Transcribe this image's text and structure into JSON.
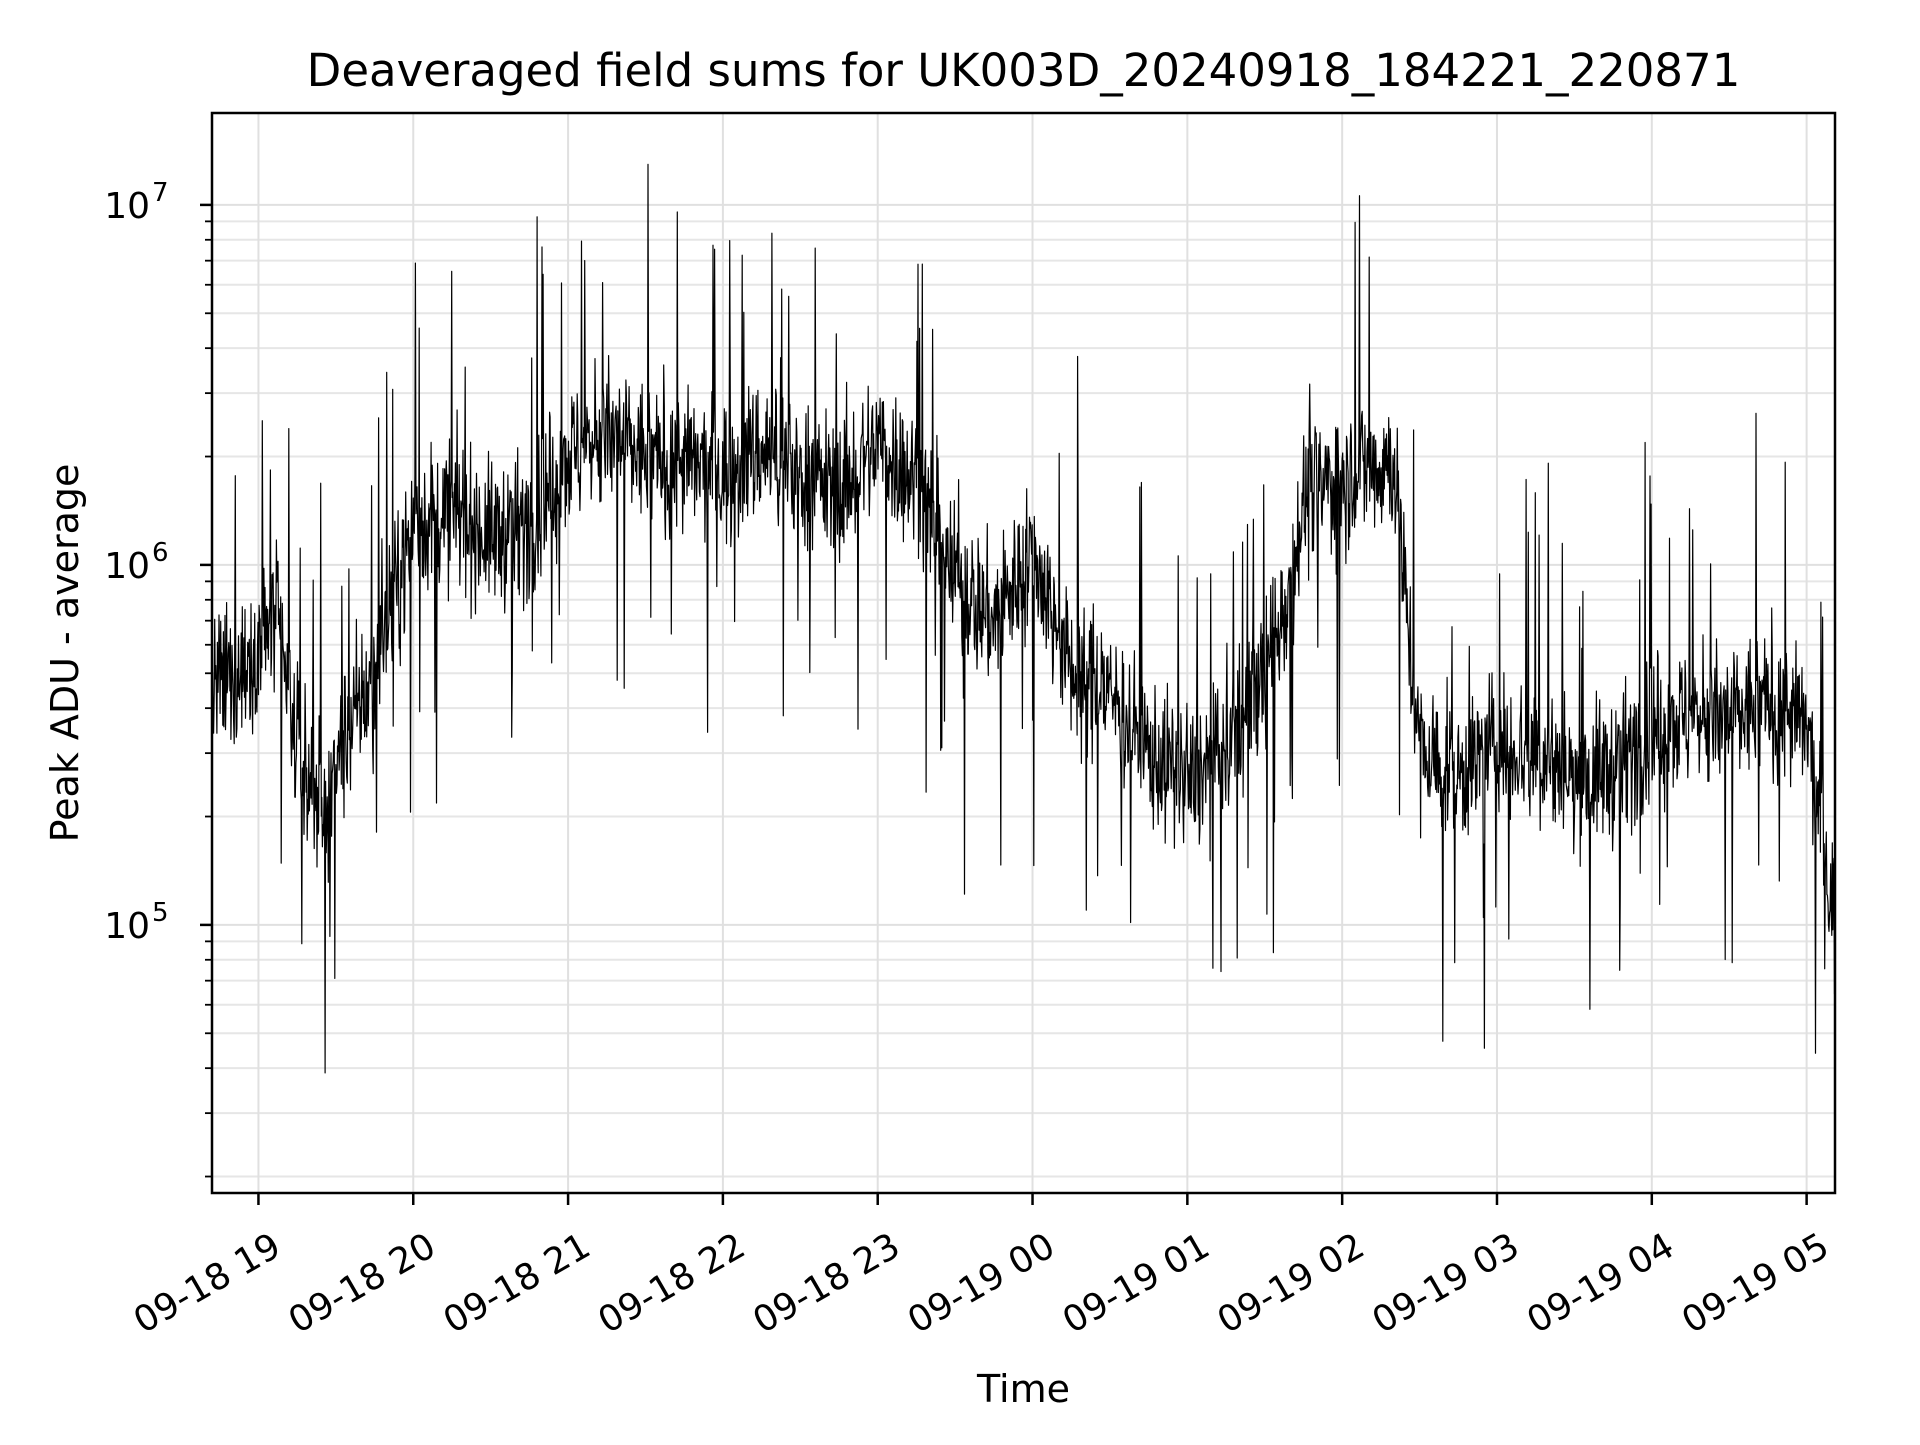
{
  "chart_data": {
    "type": "line",
    "title": "Deaveraged field sums for UK003D_20240918_184221_220871",
    "xlabel": "Time",
    "ylabel": "Peak ADU - average",
    "yscale": "log",
    "ylim": [
      18000,
      18000000
    ],
    "xlim": [
      "09-18 18:42",
      "09-19 05:11"
    ],
    "x_tick_labels": [
      "09-18 19",
      "09-18 20",
      "09-18 21",
      "09-18 22",
      "09-18 23",
      "09-19 00",
      "09-19 01",
      "09-19 02",
      "09-19 03",
      "09-19 04",
      "09-19 05"
    ],
    "y_tick_labels": [
      {
        "base": "10",
        "exp": "5"
      },
      {
        "base": "10",
        "exp": "6"
      },
      {
        "base": "10",
        "exp": "7"
      }
    ],
    "grid": true,
    "legend": "none",
    "series": [
      {
        "color": "#000000",
        "x": [
          "09-18 18:42",
          "09-18 18:50",
          "09-18 19:00",
          "09-18 19:07",
          "09-18 19:15",
          "09-18 19:25",
          "09-18 19:35",
          "09-18 19:45",
          "09-18 20:00",
          "09-18 20:15",
          "09-18 20:30",
          "09-18 20:45",
          "09-18 21:00",
          "09-18 21:15",
          "09-18 21:30",
          "09-18 21:45",
          "09-18 22:00",
          "09-18 22:15",
          "09-18 22:30",
          "09-18 22:45",
          "09-18 23:00",
          "09-18 23:15",
          "09-18 23:30",
          "09-18 23:45",
          "09-19 00:00",
          "09-19 00:15",
          "09-19 00:30",
          "09-19 00:45",
          "09-19 01:00",
          "09-19 01:15",
          "09-19 01:30",
          "09-19 01:40",
          "09-19 01:45",
          "09-19 02:00",
          "09-19 02:15",
          "09-19 02:20",
          "09-19 02:30",
          "09-19 02:45",
          "09-19 03:00",
          "09-19 03:15",
          "09-19 03:30",
          "09-19 03:45",
          "09-19 04:00",
          "09-19 04:15",
          "09-19 04:30",
          "09-19 04:45",
          "09-19 05:00",
          "09-19 05:11"
        ],
        "y": [
          450000,
          480000,
          600000,
          700000,
          300000,
          200000,
          350000,
          500000,
          1300000,
          1400000,
          1200000,
          1300000,
          2000000,
          2300000,
          2000000,
          1900000,
          1800000,
          2100000,
          1800000,
          1600000,
          2200000,
          1700000,
          900000,
          700000,
          1100000,
          500000,
          450000,
          300000,
          250000,
          300000,
          500000,
          900000,
          1500000,
          1800000,
          1900000,
          1950000,
          300000,
          260000,
          320000,
          300000,
          250000,
          270000,
          350000,
          380000,
          370000,
          420000,
          350000,
          100000
        ]
      }
    ]
  }
}
